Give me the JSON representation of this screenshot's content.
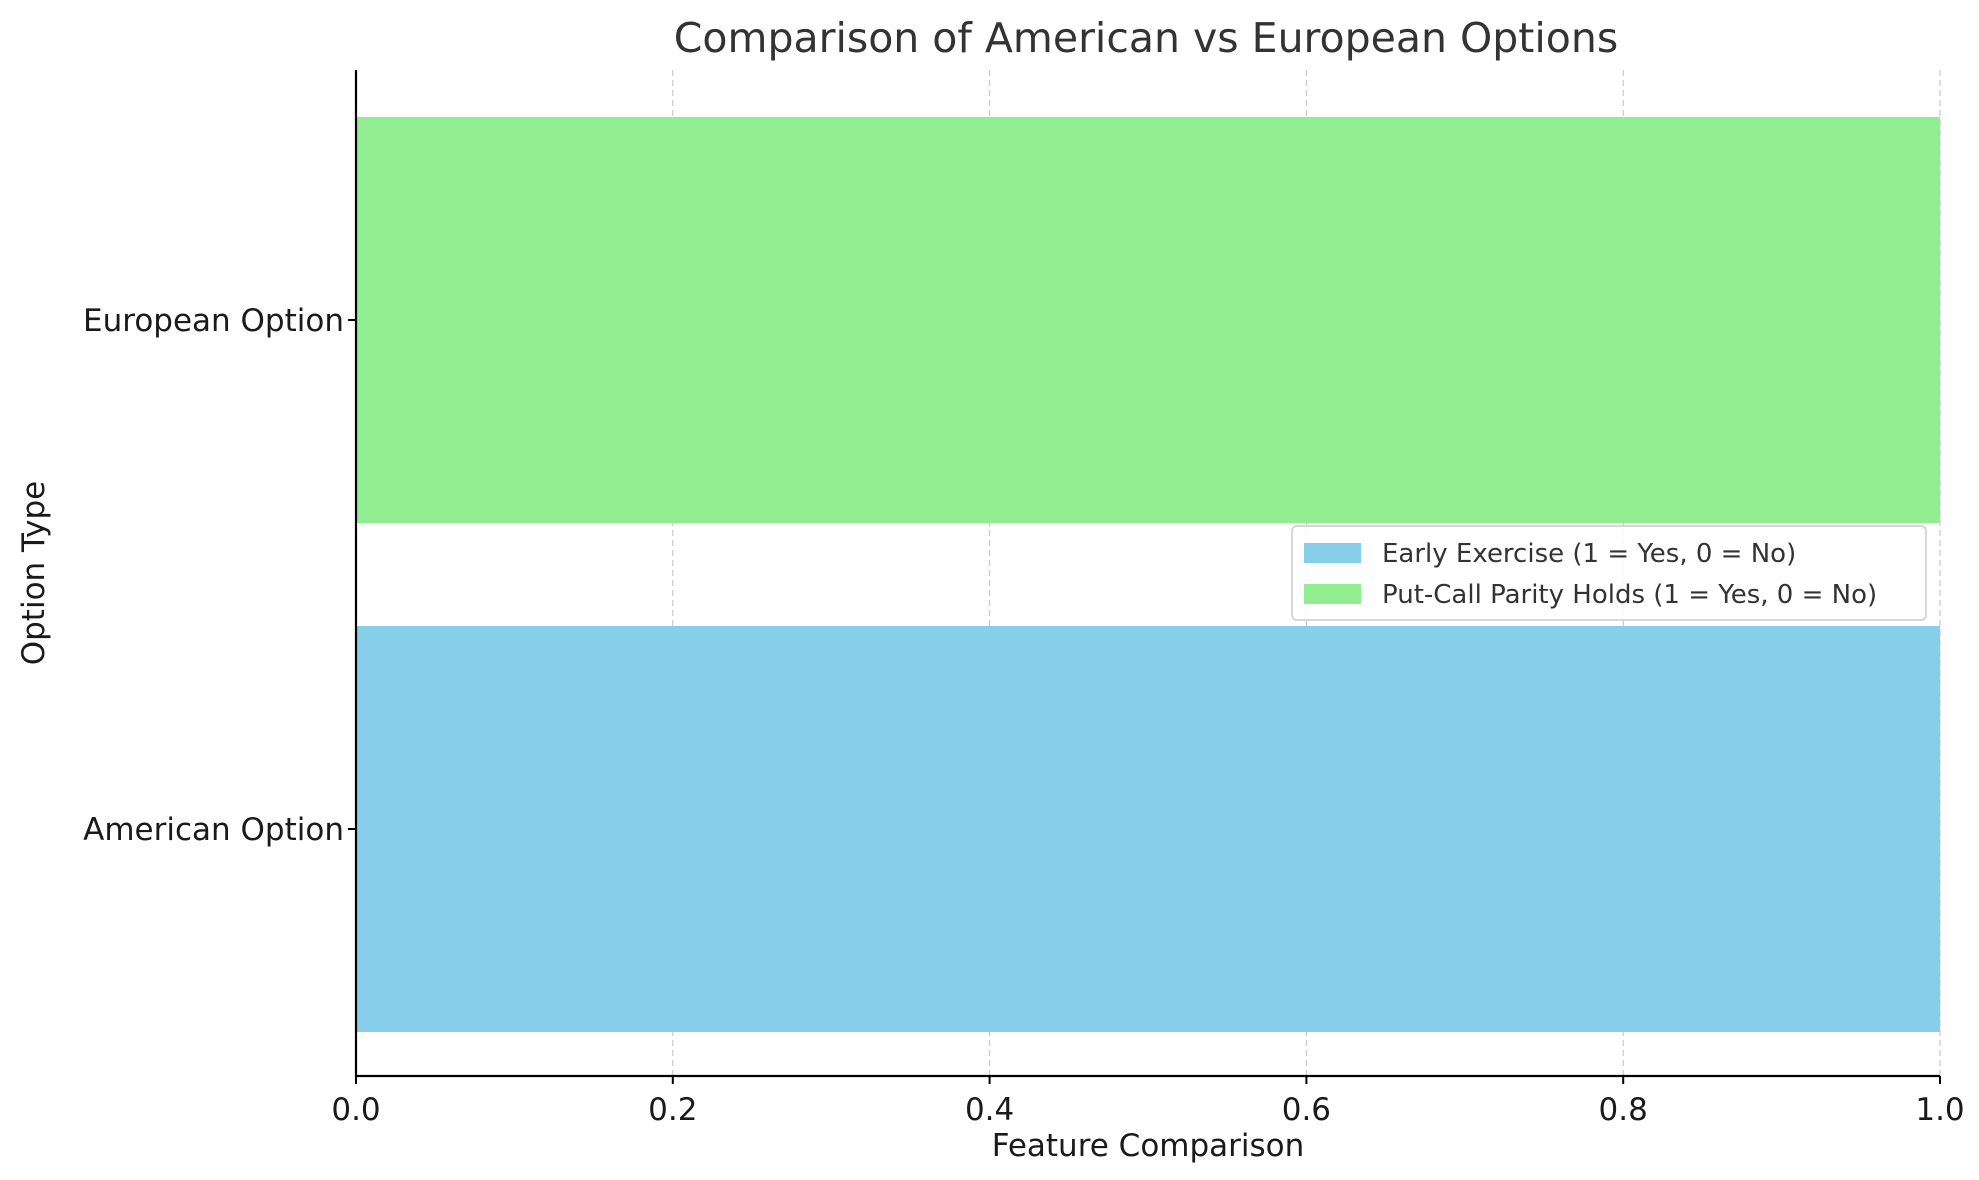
{
  "chart_data": {
    "type": "bar",
    "orientation": "horizontal",
    "title": "Comparison of American vs European Options",
    "xlabel": "Feature Comparison",
    "ylabel": "Option Type",
    "categories": [
      "American Option",
      "European Option"
    ],
    "series": [
      {
        "name": "Early Exercise (1 = Yes, 0 = No)",
        "values": [
          1,
          0
        ],
        "color": "#87CEEB"
      },
      {
        "name": "Put-Call Parity Holds (1 = Yes, 0 = No)",
        "values": [
          0,
          1
        ],
        "color": "#90EE90"
      }
    ],
    "xlim": [
      0,
      1
    ],
    "xticks": [
      "0.0",
      "0.2",
      "0.4",
      "0.6",
      "0.8",
      "1.0"
    ],
    "grid": true,
    "legend_position": "center-right"
  }
}
